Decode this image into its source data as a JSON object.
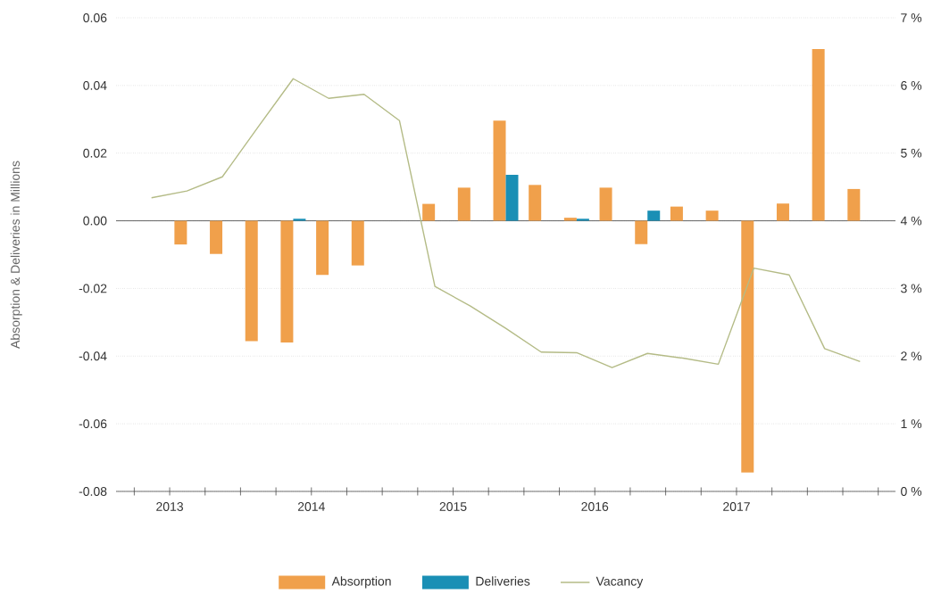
{
  "chart_data": {
    "type": "bar",
    "ylabel": "Absorption & Deliveries in Millions",
    "x": [
      "2013-05-15",
      "2013-08-15",
      "2013-11-15",
      "2014-02-15",
      "2014-05-15",
      "2014-08-15",
      "2014-11-15",
      "2015-02-15",
      "2015-05-15",
      "2015-08-15",
      "2015-11-15",
      "2016-02-15",
      "2016-05-15",
      "2016-08-15",
      "2016-11-15",
      "2017-02-15",
      "2017-05-15",
      "2017-08-15",
      "2017-11-15",
      "2018-02-15",
      "2018-05-15"
    ],
    "series": [
      {
        "name": "Absorption",
        "color": "#f0a04b",
        "values": [
          null,
          -0.007,
          -0.0098,
          -0.0356,
          -0.036,
          -0.016,
          -0.0132,
          null,
          0.005,
          0.0098,
          0.0296,
          0.0106,
          0.0009,
          0.0098,
          -0.0069,
          0.0042,
          0.003,
          -0.0744,
          0.0051,
          0.0508,
          0.0094
        ]
      },
      {
        "name": "Deliveries",
        "color": "#1a8fb5",
        "values": [
          null,
          null,
          null,
          null,
          0.0006,
          null,
          null,
          null,
          null,
          null,
          0.0136,
          null,
          0.0006,
          null,
          0.003,
          null,
          null,
          null,
          null,
          null,
          null
        ]
      },
      {
        "name": "Vacancy",
        "type": "line",
        "axis": "y2",
        "color": "#b4bb86",
        "values": [
          4.34,
          4.44,
          4.65,
          5.38,
          6.1,
          5.81,
          5.87,
          5.48,
          3.03,
          2.74,
          2.41,
          2.06,
          2.05,
          1.83,
          2.04,
          1.97,
          1.88,
          3.3,
          3.2,
          2.11,
          1.92
        ]
      }
    ],
    "xlim": [
      "2013-02-15",
      "2018-08-15"
    ],
    "xticks": [
      {
        "value": "2013-04-01",
        "label": null
      },
      {
        "value": "2013-07-01",
        "label": "2013"
      },
      {
        "value": "2013-10-01",
        "label": null
      },
      {
        "value": "2014-01-01",
        "label": null
      },
      {
        "value": "2014-04-01",
        "label": null
      },
      {
        "value": "2014-07-01",
        "label": "2014"
      },
      {
        "value": "2014-10-01",
        "label": null
      },
      {
        "value": "2015-01-01",
        "label": null
      },
      {
        "value": "2015-04-01",
        "label": null
      },
      {
        "value": "2015-07-01",
        "label": "2015"
      },
      {
        "value": "2015-10-01",
        "label": null
      },
      {
        "value": "2016-01-01",
        "label": null
      },
      {
        "value": "2016-04-01",
        "label": null
      },
      {
        "value": "2016-07-01",
        "label": "2016"
      },
      {
        "value": "2016-10-01",
        "label": null
      },
      {
        "value": "2017-01-01",
        "label": null
      },
      {
        "value": "2017-04-01",
        "label": null
      },
      {
        "value": "2017-07-01",
        "label": "2017"
      },
      {
        "value": "2017-10-01",
        "label": null
      },
      {
        "value": "2018-01-01",
        "label": null
      },
      {
        "value": "2018-04-01",
        "label": null
      },
      {
        "value": "2018-07-01",
        "label": null
      }
    ],
    "ylim": [
      -0.08,
      0.06
    ],
    "yticks": [
      -0.08,
      -0.06,
      -0.04,
      -0.02,
      {
        "value": 0,
        "label": "0.00"
      },
      0.02,
      0.04,
      0.06
    ],
    "y2lim": [
      0,
      7
    ],
    "y2ticks": [
      {
        "value": 0,
        "label": "0 %"
      },
      {
        "value": 1,
        "label": "1 %"
      },
      {
        "value": 2,
        "label": "2 %"
      },
      {
        "value": 3,
        "label": "3 %"
      },
      {
        "value": 4,
        "label": "4 %"
      },
      {
        "value": 5,
        "label": "5 %"
      },
      {
        "value": 6,
        "label": "6 %"
      },
      {
        "value": 7,
        "label": "7 %"
      }
    ],
    "ref_lines": [
      {
        "axis": "y",
        "value": 0,
        "color": "#555555"
      }
    ],
    "grid": "y",
    "legend": "bottom",
    "marker": "none"
  }
}
